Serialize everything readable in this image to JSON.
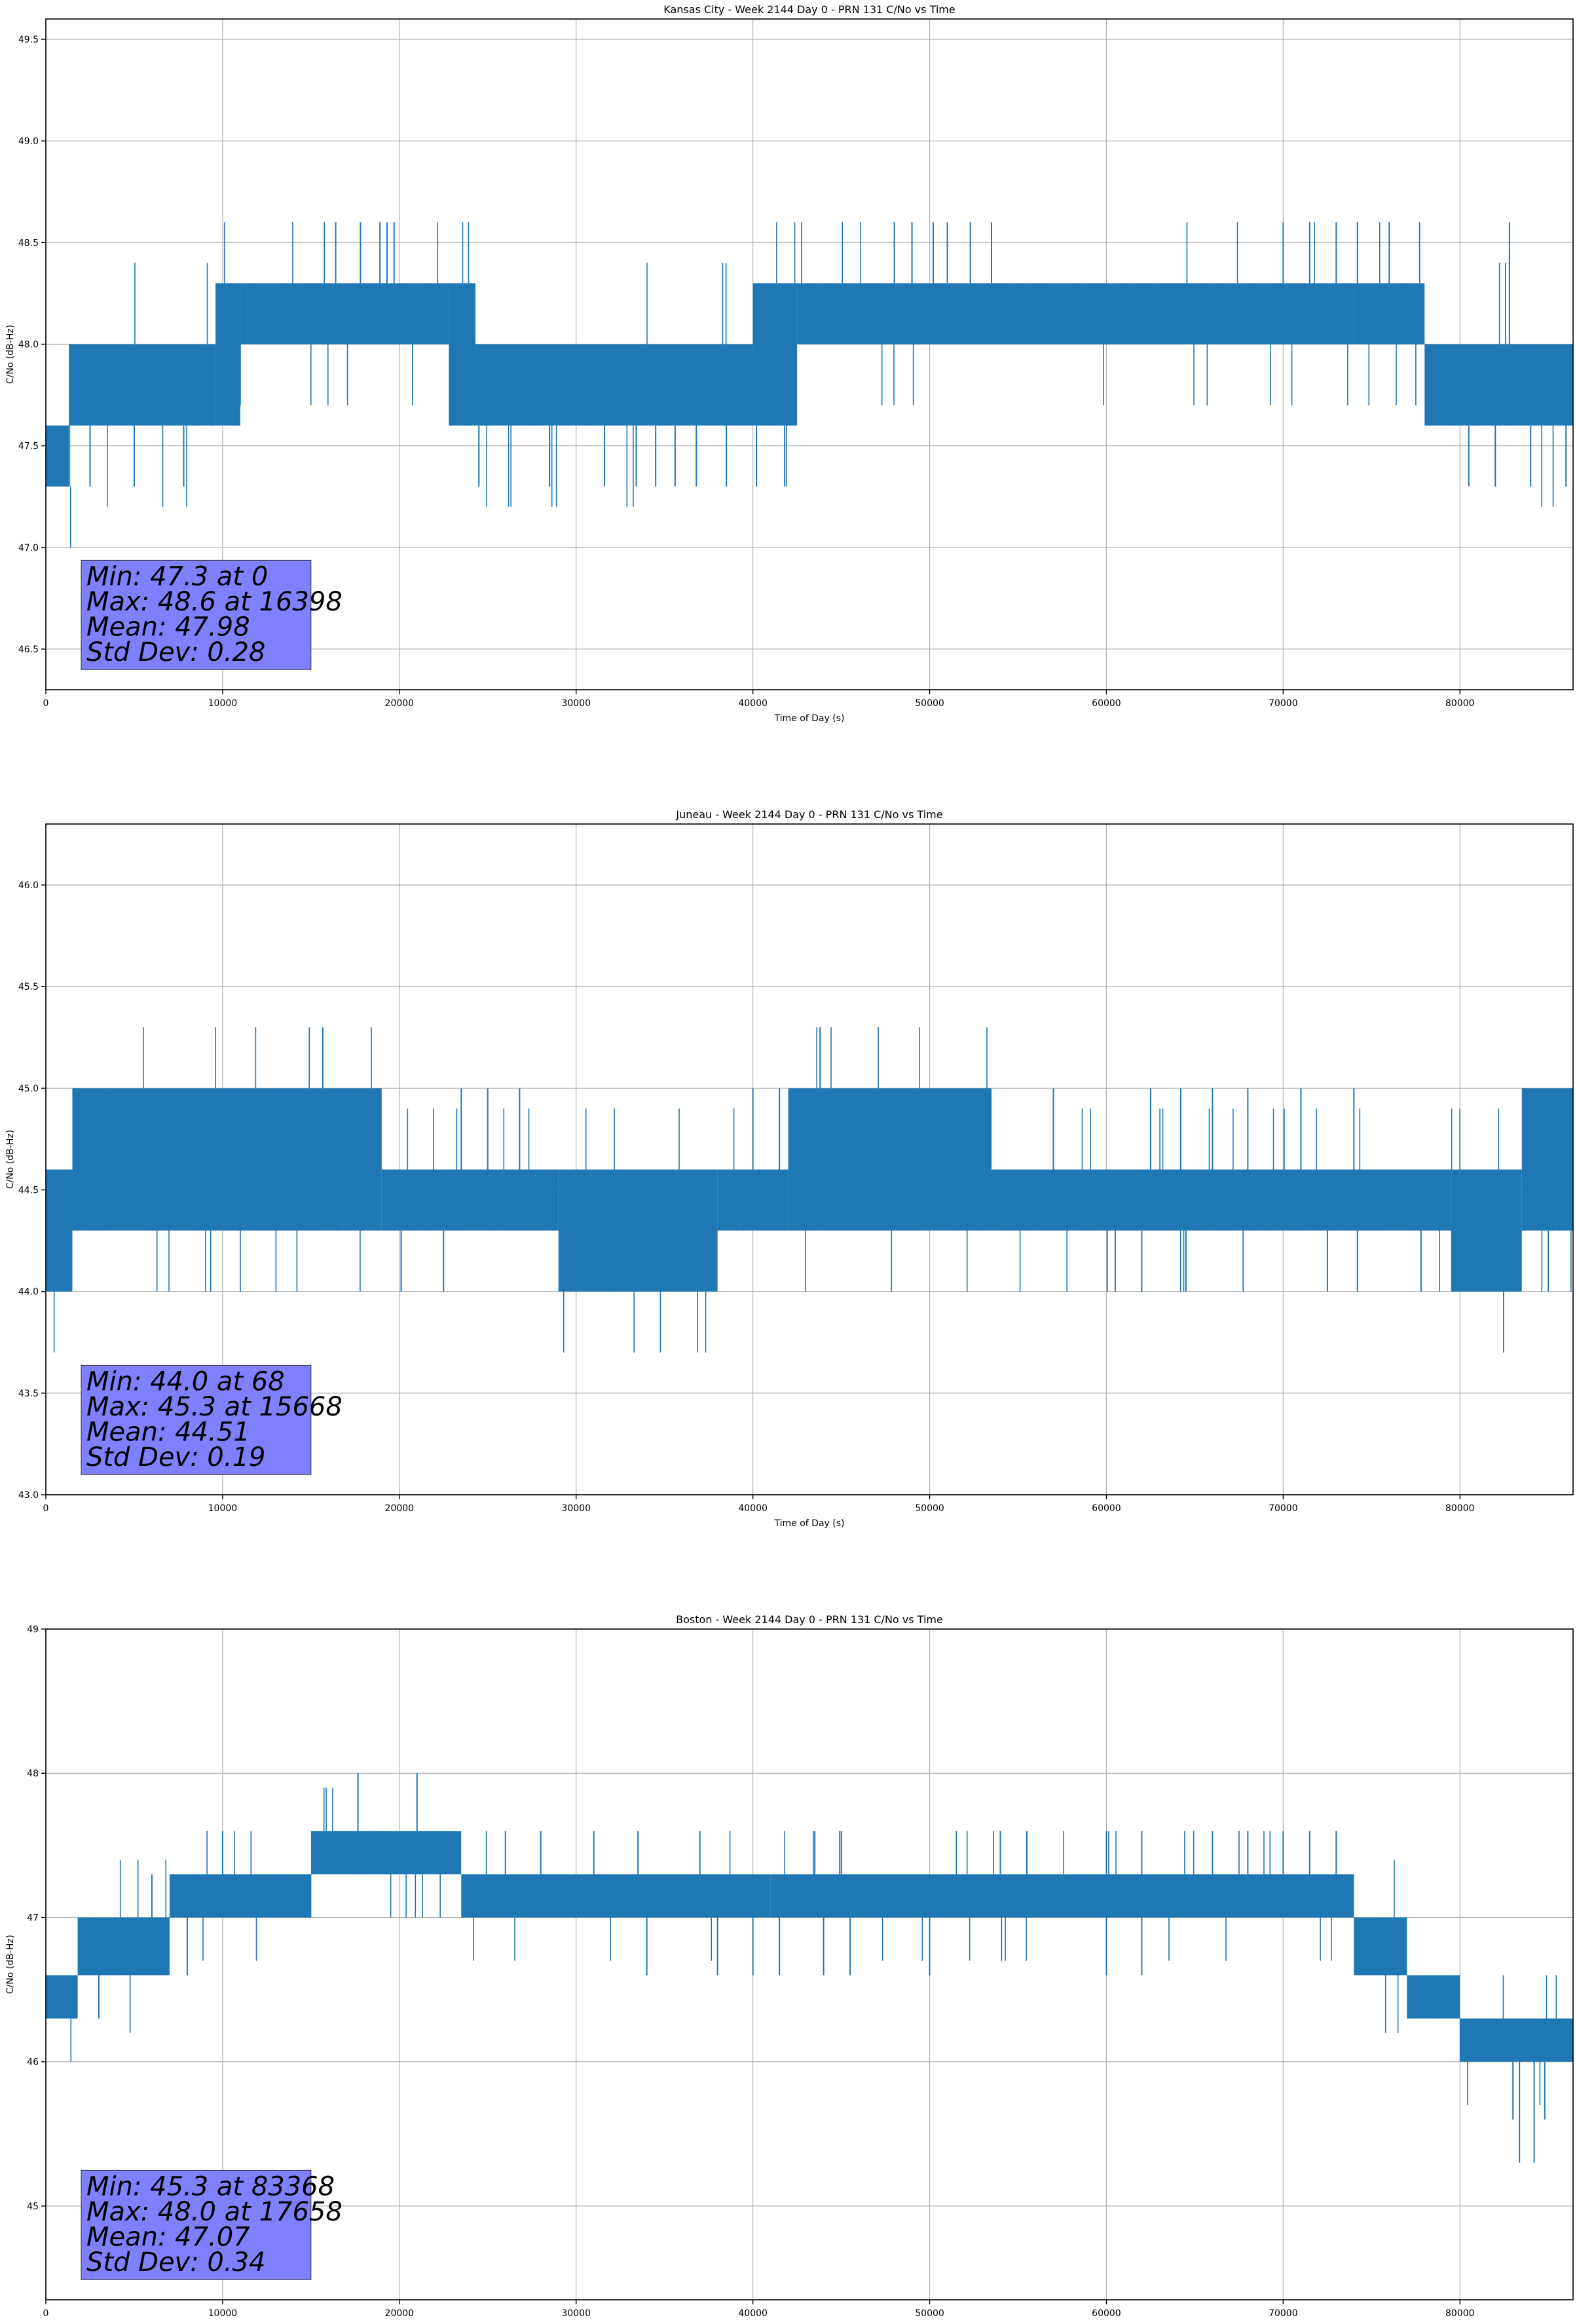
{
  "colors": {
    "line": "#1f77b4",
    "stats_box": "#8080ff",
    "grid": "#b0b0b0",
    "axis": "#000000"
  },
  "chart_data": [
    {
      "type": "line",
      "title": "Kansas City - Week 2144 Day 0 - PRN 131 C/No vs Time",
      "xlabel": "Time of Day (s)",
      "ylabel": "C/No (dB-Hz)",
      "xlim": [
        0,
        86400
      ],
      "ylim": [
        46.3,
        49.6
      ],
      "xticks": [
        0,
        10000,
        20000,
        30000,
        40000,
        50000,
        60000,
        70000,
        80000
      ],
      "yticks": [
        46.5,
        47.0,
        47.5,
        48.0,
        48.5,
        49.0,
        49.5
      ],
      "ytick_labels": [
        "46.5",
        "47.0",
        "47.5",
        "48.0",
        "48.5",
        "49.0",
        "49.5"
      ],
      "grid": true,
      "stats": [
        "Min: 47.3 at 0",
        "Max: 48.6 at 16398",
        "Mean: 47.98",
        "Std Dev: 0.28"
      ],
      "series": [
        {
          "band_segments": [
            [
              0,
              1300,
              47.3,
              47.6
            ],
            [
              1300,
              9600,
              47.6,
              48.0
            ],
            [
              9600,
              11000,
              47.6,
              48.3
            ],
            [
              11000,
              22800,
              48.0,
              48.3
            ],
            [
              22800,
              24300,
              47.6,
              48.3
            ],
            [
              24300,
              40000,
              47.6,
              48.0
            ],
            [
              40000,
              42500,
              47.6,
              48.3
            ],
            [
              42500,
              74000,
              48.0,
              48.3
            ],
            [
              74000,
              78000,
              48.0,
              48.3
            ],
            [
              78000,
              86400,
              47.6,
              48.0
            ]
          ],
          "spikes": [
            [
              16398,
              48.6
            ],
            [
              17800,
              48.6
            ],
            [
              18900,
              48.6
            ],
            [
              19300,
              48.6
            ],
            [
              19700,
              48.6
            ],
            [
              48000,
              48.6
            ],
            [
              49000,
              48.6
            ],
            [
              50200,
              48.6
            ],
            [
              51000,
              48.6
            ],
            [
              52300,
              48.6
            ],
            [
              53500,
              48.6
            ],
            [
              70000,
              48.6
            ],
            [
              71500,
              48.6
            ],
            [
              73000,
              48.6
            ],
            [
              74200,
              48.6
            ],
            [
              76000,
              48.6
            ],
            [
              82800,
              48.6
            ],
            [
              0,
              47.3
            ],
            [
              2500,
              47.3
            ],
            [
              5000,
              47.3
            ],
            [
              7800,
              47.3
            ],
            [
              24500,
              47.3
            ],
            [
              28500,
              47.3
            ],
            [
              31600,
              47.3
            ],
            [
              33400,
              47.3
            ],
            [
              34500,
              47.3
            ],
            [
              35600,
              47.3
            ],
            [
              36800,
              47.3
            ],
            [
              38500,
              47.3
            ],
            [
              40200,
              47.3
            ],
            [
              41800,
              47.3
            ],
            [
              80500,
              47.3
            ],
            [
              82000,
              47.3
            ],
            [
              84000,
              47.3
            ],
            [
              86000,
              47.3
            ]
          ]
        }
      ]
    },
    {
      "type": "line",
      "title": "Juneau - Week 2144 Day 0 - PRN 131 C/No vs Time",
      "xlabel": "Time of Day (s)",
      "ylabel": "C/No (dB-Hz)",
      "xlim": [
        0,
        86400
      ],
      "ylim": [
        43.0,
        46.3
      ],
      "xticks": [
        0,
        10000,
        20000,
        30000,
        40000,
        50000,
        60000,
        70000,
        80000
      ],
      "yticks": [
        43.0,
        43.5,
        44.0,
        44.5,
        45.0,
        45.5,
        46.0
      ],
      "ytick_labels": [
        "43.0",
        "43.5",
        "44.0",
        "44.5",
        "45.0",
        "45.5",
        "46.0"
      ],
      "grid": true,
      "stats": [
        "Min: 44.0 at 68",
        "Max: 45.3 at 15668",
        "Mean: 44.51",
        "Std Dev: 0.19"
      ],
      "series": [
        {
          "band_segments": [
            [
              0,
              1500,
              44.0,
              44.6
            ],
            [
              1500,
              10000,
              44.3,
              45.0
            ],
            [
              10000,
              19000,
              44.3,
              45.0
            ],
            [
              19000,
              29000,
              44.3,
              44.6
            ],
            [
              29000,
              38000,
              44.0,
              44.6
            ],
            [
              38000,
              42000,
              44.3,
              44.6
            ],
            [
              42000,
              53500,
              44.3,
              45.0
            ],
            [
              53500,
              79500,
              44.3,
              44.6
            ],
            [
              79500,
              83500,
              44.0,
              44.6
            ],
            [
              83500,
              86400,
              44.3,
              45.0
            ]
          ],
          "spikes": [
            [
              15668,
              45.3
            ],
            [
              43800,
              45.3
            ],
            [
              20100,
              44.0
            ],
            [
              22500,
              44.0
            ],
            [
              60500,
              44.0
            ],
            [
              62000,
              44.0
            ],
            [
              64500,
              44.0
            ],
            [
              72500,
              44.0
            ],
            [
              74200,
              44.0
            ],
            [
              77800,
              44.0
            ],
            [
              85000,
              44.0
            ],
            [
              23500,
              45.0
            ],
            [
              25000,
              45.0
            ],
            [
              26800,
              45.0
            ],
            [
              40000,
              45.0
            ],
            [
              41500,
              45.0
            ],
            [
              57000,
              45.0
            ],
            [
              62500,
              45.0
            ],
            [
              64200,
              45.0
            ],
            [
              66000,
              45.0
            ],
            [
              68000,
              45.0
            ],
            [
              71000,
              45.0
            ],
            [
              74000,
              45.0
            ]
          ]
        }
      ]
    },
    {
      "type": "line",
      "title": "Boston - Week 2144 Day 0 - PRN 131 C/No vs Time",
      "xlabel": "Time of Day (s)",
      "ylabel": "C/No (dB-Hz)",
      "xlim": [
        0,
        86400
      ],
      "ylim": [
        44.35,
        49.0
      ],
      "xticks": [
        0,
        10000,
        20000,
        30000,
        40000,
        50000,
        60000,
        70000,
        80000
      ],
      "yticks": [
        45,
        46,
        47,
        48,
        49
      ],
      "ytick_labels": [
        "45",
        "46",
        "47",
        "48",
        "49"
      ],
      "grid": true,
      "stats": [
        "Min: 45.3 at 83368",
        "Max: 48.0 at 17658",
        "Mean: 47.07",
        "Std Dev: 0.34"
      ],
      "series": [
        {
          "band_segments": [
            [
              0,
              1800,
              46.3,
              46.6
            ],
            [
              1800,
              7000,
              46.6,
              47.0
            ],
            [
              7000,
              15000,
              47.0,
              47.3
            ],
            [
              15000,
              23500,
              47.3,
              47.6
            ],
            [
              23500,
              41000,
              47.0,
              47.3
            ],
            [
              41000,
              74000,
              47.0,
              47.3
            ],
            [
              74000,
              77000,
              46.6,
              47.0
            ],
            [
              77000,
              80000,
              46.3,
              46.6
            ],
            [
              80000,
              86400,
              46.0,
              46.3
            ]
          ],
          "spikes": [
            [
              17658,
              48.0
            ],
            [
              21000,
              48.0
            ],
            [
              83368,
              45.3
            ],
            [
              84200,
              45.3
            ],
            [
              83000,
              45.6
            ],
            [
              84800,
              45.6
            ],
            [
              34000,
              46.6
            ],
            [
              38000,
              46.6
            ],
            [
              40000,
              46.6
            ],
            [
              41500,
              46.6
            ],
            [
              44000,
              46.6
            ],
            [
              45500,
              46.6
            ],
            [
              50000,
              46.6
            ],
            [
              60000,
              46.6
            ],
            [
              62000,
              46.6
            ],
            [
              26000,
              47.6
            ],
            [
              28000,
              47.6
            ],
            [
              31000,
              47.6
            ],
            [
              33500,
              47.6
            ],
            [
              37000,
              47.6
            ],
            [
              43500,
              47.6
            ],
            [
              45000,
              47.6
            ],
            [
              54000,
              47.6
            ],
            [
              55500,
              47.6
            ],
            [
              60000,
              47.6
            ],
            [
              62000,
              47.6
            ],
            [
              66000,
              47.6
            ],
            [
              68000,
              47.6
            ],
            [
              70000,
              47.6
            ],
            [
              71500,
              47.6
            ],
            [
              73000,
              47.6
            ],
            [
              4000,
              47.0
            ],
            [
              6000,
              47.3
            ],
            [
              8000,
              46.6
            ],
            [
              10000,
              47.6
            ],
            [
              3000,
              46.3
            ],
            [
              2500,
              47.0
            ]
          ]
        }
      ]
    }
  ]
}
